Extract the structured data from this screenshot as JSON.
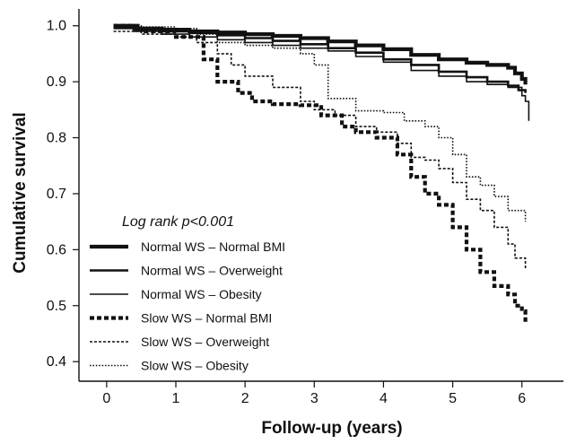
{
  "chart_data": {
    "type": "line",
    "step": true,
    "title": "",
    "xlabel": "Follow-up (years)",
    "ylabel": "Cumulative survival",
    "xlim": [
      -0.4,
      6.6
    ],
    "ylim": [
      0.365,
      1.03
    ],
    "xticks": [
      0,
      1,
      2,
      3,
      4,
      5,
      6
    ],
    "yticks": [
      0.4,
      0.5,
      0.6,
      0.7,
      0.8,
      0.9,
      1.0
    ],
    "ytick_labels": [
      "0.4",
      "0.5",
      "0.6",
      "0.7",
      "0.8",
      "0.9",
      "1.0"
    ],
    "grid": false,
    "legend_position": "bottom-left",
    "annotation": "Log rank p<0.001",
    "series": [
      {
        "name": "Normal WS – Normal BMI",
        "color": "#111111",
        "dash": "solid",
        "weight": "thick",
        "x": [
          0.1,
          0.4,
          0.8,
          1.2,
          1.6,
          2.0,
          2.4,
          2.8,
          3.2,
          3.6,
          4.0,
          4.4,
          4.8,
          5.2,
          5.5,
          5.8,
          5.9,
          6.0,
          6.05
        ],
        "y": [
          1.0,
          0.995,
          0.993,
          0.99,
          0.988,
          0.985,
          0.982,
          0.978,
          0.972,
          0.965,
          0.958,
          0.948,
          0.94,
          0.934,
          0.93,
          0.925,
          0.915,
          0.905,
          0.895
        ]
      },
      {
        "name": "Normal WS – Overweight",
        "color": "#111111",
        "dash": "solid",
        "weight": "medium",
        "x": [
          0.1,
          0.4,
          0.8,
          1.2,
          1.6,
          2.0,
          2.4,
          2.8,
          3.2,
          3.6,
          4.0,
          4.4,
          4.8,
          5.2,
          5.5,
          5.8,
          5.95,
          6.05
        ],
        "y": [
          0.997,
          0.993,
          0.99,
          0.987,
          0.983,
          0.978,
          0.973,
          0.967,
          0.96,
          0.952,
          0.94,
          0.93,
          0.918,
          0.908,
          0.9,
          0.893,
          0.885,
          0.88
        ]
      },
      {
        "name": "Normal WS – Obesity",
        "color": "#111111",
        "dash": "solid",
        "weight": "thin",
        "x": [
          0.1,
          0.4,
          0.8,
          1.2,
          1.6,
          2.0,
          2.4,
          2.8,
          3.2,
          3.6,
          4.0,
          4.4,
          4.8,
          5.2,
          5.5,
          5.8,
          6.0,
          6.05,
          6.1
        ],
        "y": [
          0.995,
          0.99,
          0.985,
          0.98,
          0.975,
          0.97,
          0.965,
          0.96,
          0.955,
          0.945,
          0.935,
          0.92,
          0.91,
          0.9,
          0.895,
          0.89,
          0.875,
          0.865,
          0.83
        ]
      },
      {
        "name": "Slow WS – Normal BMI",
        "color": "#111111",
        "dash": "dashed",
        "weight": "thick",
        "x": [
          0.1,
          0.5,
          1.0,
          1.4,
          1.6,
          1.9,
          2.1,
          2.4,
          2.8,
          3.1,
          3.4,
          3.6,
          3.9,
          4.2,
          4.4,
          4.6,
          4.8,
          5.0,
          5.2,
          5.4,
          5.6,
          5.8,
          5.9,
          6.0,
          6.05
        ],
        "y": [
          1.0,
          0.99,
          0.98,
          0.94,
          0.9,
          0.88,
          0.865,
          0.86,
          0.858,
          0.84,
          0.82,
          0.81,
          0.8,
          0.77,
          0.73,
          0.7,
          0.68,
          0.64,
          0.6,
          0.56,
          0.535,
          0.52,
          0.5,
          0.49,
          0.47
        ]
      },
      {
        "name": "Slow WS – Overweight",
        "color": "#111111",
        "dash": "dashed",
        "weight": "thin",
        "x": [
          0.1,
          0.5,
          1.0,
          1.3,
          1.6,
          1.8,
          2.0,
          2.4,
          2.8,
          3.0,
          3.3,
          3.6,
          3.9,
          4.2,
          4.4,
          4.6,
          4.8,
          5.0,
          5.2,
          5.4,
          5.6,
          5.8,
          5.9,
          6.05
        ],
        "y": [
          0.99,
          0.985,
          0.98,
          0.97,
          0.95,
          0.93,
          0.91,
          0.89,
          0.865,
          0.85,
          0.84,
          0.82,
          0.81,
          0.79,
          0.765,
          0.76,
          0.745,
          0.72,
          0.69,
          0.67,
          0.64,
          0.61,
          0.585,
          0.565
        ]
      },
      {
        "name": "Slow WS – Obesity",
        "color": "#111111",
        "dash": "dotted",
        "weight": "thin",
        "x": [
          0.1,
          0.5,
          1.0,
          1.3,
          1.6,
          2.0,
          2.4,
          2.8,
          3.0,
          3.2,
          3.6,
          4.0,
          4.3,
          4.6,
          4.8,
          5.0,
          5.2,
          5.4,
          5.6,
          5.8,
          6.05
        ],
        "y": [
          1.0,
          0.998,
          0.995,
          0.985,
          0.97,
          0.965,
          0.96,
          0.95,
          0.93,
          0.87,
          0.848,
          0.845,
          0.83,
          0.82,
          0.8,
          0.77,
          0.73,
          0.715,
          0.695,
          0.67,
          0.65
        ]
      }
    ]
  }
}
